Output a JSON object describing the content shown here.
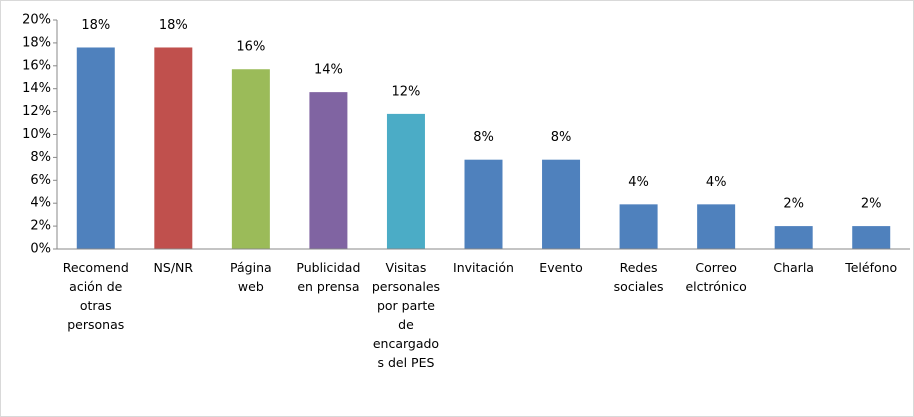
{
  "chart_data": {
    "type": "bar",
    "categories": [
      "Recomend\nación de\notras\npersonas",
      "NS/NR",
      "Página\nweb",
      "Publicidad\nen prensa",
      "Visitas\npersonales\npor parte\nde\nencargado\ns del PES",
      "Invitación",
      "Evento",
      "Redes\nsociales",
      "Correo\nelctrónico",
      "Charla",
      "Teléfono"
    ],
    "values": [
      17.6,
      17.6,
      15.7,
      13.7,
      11.8,
      7.8,
      7.8,
      3.9,
      3.9,
      2.0,
      2.0
    ],
    "value_labels": [
      "18%",
      "18%",
      "16%",
      "14%",
      "12%",
      "8%",
      "8%",
      "4%",
      "4%",
      "2%",
      "2%"
    ],
    "colors": [
      "#4f81bd",
      "#c0504d",
      "#9bbb59",
      "#8064a2",
      "#4bacc6",
      "#4f81bd",
      "#4f81bd",
      "#4f81bd",
      "#4f81bd",
      "#4f81bd",
      "#4f81bd"
    ],
    "ylim": [
      0,
      20
    ],
    "yticks": [
      {
        "value": 0,
        "label": "0%"
      },
      {
        "value": 2,
        "label": "2%"
      },
      {
        "value": 4,
        "label": "4%"
      },
      {
        "value": 6,
        "label": "6%"
      },
      {
        "value": 8,
        "label": "8%"
      },
      {
        "value": 10,
        "label": "10%"
      },
      {
        "value": 12,
        "label": "12%"
      },
      {
        "value": 14,
        "label": "14%"
      },
      {
        "value": 16,
        "label": "16%"
      },
      {
        "value": 18,
        "label": "18%"
      },
      {
        "value": 20,
        "label": "20%"
      }
    ],
    "grid": false
  }
}
